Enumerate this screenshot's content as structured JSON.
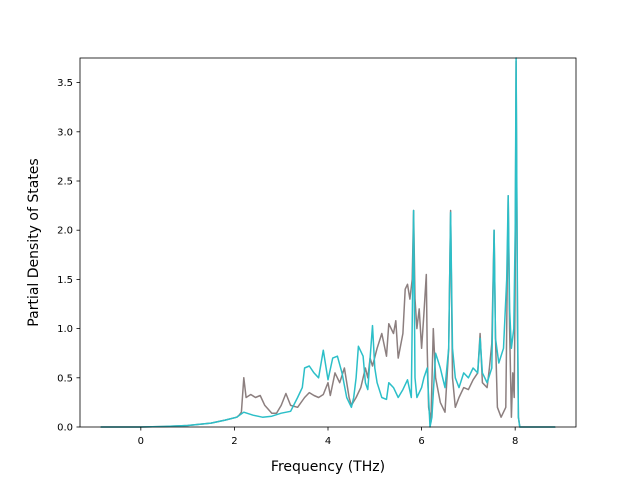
{
  "chart_data": {
    "type": "line",
    "title": "",
    "xlabel": "Frequency (THz)",
    "ylabel": "Partial Density of States",
    "xlim": [
      -1.3,
      9.3
    ],
    "ylim": [
      0.0,
      3.75
    ],
    "xticks": [
      0,
      2,
      4,
      6,
      8
    ],
    "xtick_labels": [
      "0",
      "2",
      "4",
      "6",
      "8"
    ],
    "yticks": [
      0.0,
      0.5,
      1.0,
      1.5,
      2.0,
      2.5,
      3.0,
      3.5
    ],
    "ytick_labels": [
      "0.0",
      "0.5",
      "1.0",
      "1.5",
      "2.0",
      "2.5",
      "3.0",
      "3.5"
    ],
    "grid": false,
    "legend": "none",
    "series": [
      {
        "color": "#8c7f7f",
        "points": [
          [
            -0.85,
            0.0
          ],
          [
            0.0,
            0.0
          ],
          [
            0.5,
            0.005
          ],
          [
            1.0,
            0.015
          ],
          [
            1.5,
            0.04
          ],
          [
            1.8,
            0.07
          ],
          [
            2.05,
            0.1
          ],
          [
            2.1,
            0.12
          ],
          [
            2.15,
            0.15
          ],
          [
            2.2,
            0.5
          ],
          [
            2.25,
            0.3
          ],
          [
            2.35,
            0.33
          ],
          [
            2.45,
            0.3
          ],
          [
            2.55,
            0.32
          ],
          [
            2.65,
            0.22
          ],
          [
            2.8,
            0.14
          ],
          [
            2.9,
            0.14
          ],
          [
            3.0,
            0.22
          ],
          [
            3.1,
            0.34
          ],
          [
            3.2,
            0.22
          ],
          [
            3.35,
            0.2
          ],
          [
            3.5,
            0.3
          ],
          [
            3.6,
            0.35
          ],
          [
            3.7,
            0.32
          ],
          [
            3.8,
            0.3
          ],
          [
            3.9,
            0.33
          ],
          [
            4.0,
            0.45
          ],
          [
            4.05,
            0.32
          ],
          [
            4.15,
            0.55
          ],
          [
            4.25,
            0.45
          ],
          [
            4.35,
            0.6
          ],
          [
            4.45,
            0.3
          ],
          [
            4.5,
            0.22
          ],
          [
            4.6,
            0.3
          ],
          [
            4.7,
            0.4
          ],
          [
            4.8,
            0.6
          ],
          [
            4.85,
            0.5
          ],
          [
            4.9,
            0.7
          ],
          [
            4.95,
            0.62
          ],
          [
            5.05,
            0.8
          ],
          [
            5.15,
            0.95
          ],
          [
            5.25,
            0.72
          ],
          [
            5.3,
            1.05
          ],
          [
            5.4,
            0.95
          ],
          [
            5.45,
            1.08
          ],
          [
            5.5,
            0.7
          ],
          [
            5.6,
            0.95
          ],
          [
            5.65,
            1.4
          ],
          [
            5.7,
            1.45
          ],
          [
            5.75,
            1.3
          ],
          [
            5.8,
            1.5
          ],
          [
            5.83,
            2.2
          ],
          [
            5.86,
            1.3
          ],
          [
            5.9,
            1.0
          ],
          [
            5.95,
            1.2
          ],
          [
            6.0,
            0.8
          ],
          [
            6.05,
            1.15
          ],
          [
            6.1,
            1.55
          ],
          [
            6.12,
            0.8
          ],
          [
            6.15,
            0.2
          ],
          [
            6.2,
            0.05
          ],
          [
            6.25,
            1.0
          ],
          [
            6.3,
            0.5
          ],
          [
            6.4,
            0.25
          ],
          [
            6.5,
            0.15
          ],
          [
            6.58,
            0.8
          ],
          [
            6.62,
            2.2
          ],
          [
            6.66,
            0.5
          ],
          [
            6.72,
            0.2
          ],
          [
            6.8,
            0.3
          ],
          [
            6.9,
            0.4
          ],
          [
            7.0,
            0.38
          ],
          [
            7.1,
            0.48
          ],
          [
            7.2,
            0.55
          ],
          [
            7.25,
            0.95
          ],
          [
            7.3,
            0.45
          ],
          [
            7.4,
            0.4
          ],
          [
            7.45,
            0.6
          ],
          [
            7.5,
            0.85
          ],
          [
            7.55,
            2.0
          ],
          [
            7.58,
            0.9
          ],
          [
            7.62,
            0.2
          ],
          [
            7.7,
            0.1
          ],
          [
            7.8,
            0.2
          ],
          [
            7.85,
            2.35
          ],
          [
            7.88,
            1.0
          ],
          [
            7.92,
            0.1
          ],
          [
            7.95,
            0.55
          ],
          [
            7.98,
            0.3
          ],
          [
            8.0,
            1.5
          ],
          [
            8.02,
            3.72
          ],
          [
            8.05,
            1.0
          ],
          [
            8.07,
            0.1
          ],
          [
            8.1,
            0.0
          ],
          [
            8.85,
            0.0
          ]
        ]
      },
      {
        "color": "#2cbfc8",
        "points": [
          [
            -0.85,
            0.0
          ],
          [
            0.0,
            0.0
          ],
          [
            0.5,
            0.005
          ],
          [
            1.0,
            0.015
          ],
          [
            1.5,
            0.04
          ],
          [
            1.8,
            0.07
          ],
          [
            2.05,
            0.1
          ],
          [
            2.2,
            0.15
          ],
          [
            2.4,
            0.12
          ],
          [
            2.6,
            0.1
          ],
          [
            2.8,
            0.11
          ],
          [
            3.0,
            0.14
          ],
          [
            3.2,
            0.16
          ],
          [
            3.35,
            0.3
          ],
          [
            3.45,
            0.4
          ],
          [
            3.5,
            0.6
          ],
          [
            3.6,
            0.62
          ],
          [
            3.7,
            0.55
          ],
          [
            3.8,
            0.5
          ],
          [
            3.9,
            0.78
          ],
          [
            4.0,
            0.48
          ],
          [
            4.1,
            0.7
          ],
          [
            4.2,
            0.72
          ],
          [
            4.3,
            0.55
          ],
          [
            4.4,
            0.3
          ],
          [
            4.5,
            0.2
          ],
          [
            4.55,
            0.3
          ],
          [
            4.6,
            0.5
          ],
          [
            4.65,
            0.82
          ],
          [
            4.75,
            0.72
          ],
          [
            4.8,
            0.45
          ],
          [
            4.85,
            0.38
          ],
          [
            4.95,
            1.03
          ],
          [
            5.0,
            0.6
          ],
          [
            5.05,
            0.45
          ],
          [
            5.15,
            0.3
          ],
          [
            5.25,
            0.28
          ],
          [
            5.3,
            0.45
          ],
          [
            5.4,
            0.4
          ],
          [
            5.5,
            0.3
          ],
          [
            5.6,
            0.38
          ],
          [
            5.7,
            0.48
          ],
          [
            5.78,
            0.3
          ],
          [
            5.83,
            2.2
          ],
          [
            5.86,
            0.5
          ],
          [
            5.9,
            0.3
          ],
          [
            6.0,
            0.4
          ],
          [
            6.05,
            0.5
          ],
          [
            6.12,
            0.6
          ],
          [
            6.18,
            0.0
          ],
          [
            6.22,
            0.1
          ],
          [
            6.3,
            0.75
          ],
          [
            6.4,
            0.6
          ],
          [
            6.5,
            0.4
          ],
          [
            6.58,
            0.8
          ],
          [
            6.62,
            2.18
          ],
          [
            6.66,
            0.8
          ],
          [
            6.72,
            0.5
          ],
          [
            6.8,
            0.4
          ],
          [
            6.9,
            0.55
          ],
          [
            7.0,
            0.5
          ],
          [
            7.1,
            0.6
          ],
          [
            7.2,
            0.55
          ],
          [
            7.25,
            0.9
          ],
          [
            7.3,
            0.55
          ],
          [
            7.4,
            0.45
          ],
          [
            7.5,
            0.6
          ],
          [
            7.55,
            2.0
          ],
          [
            7.58,
            0.9
          ],
          [
            7.65,
            0.65
          ],
          [
            7.75,
            0.8
          ],
          [
            7.82,
            1.5
          ],
          [
            7.85,
            2.35
          ],
          [
            7.88,
            1.2
          ],
          [
            7.92,
            0.8
          ],
          [
            7.97,
            1.0
          ],
          [
            8.0,
            2.0
          ],
          [
            8.02,
            3.75
          ],
          [
            8.05,
            1.2
          ],
          [
            8.07,
            0.1
          ],
          [
            8.1,
            0.0
          ],
          [
            8.85,
            0.0
          ]
        ]
      }
    ]
  }
}
